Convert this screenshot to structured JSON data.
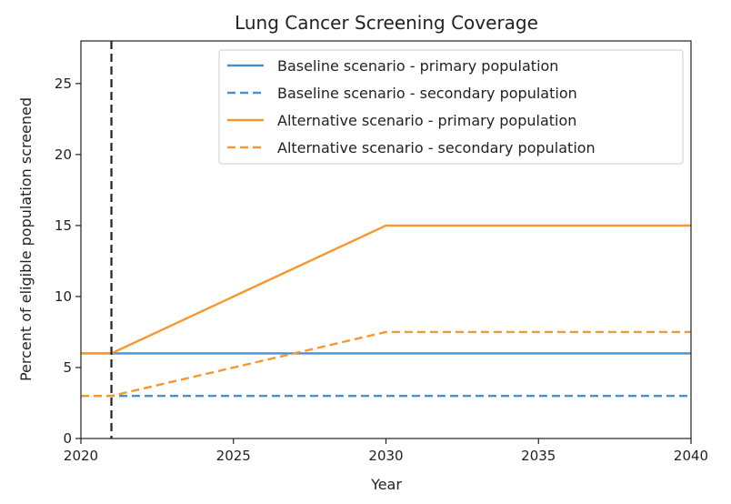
{
  "chart_data": {
    "type": "line",
    "title": "Lung Cancer Screening Coverage",
    "xlabel": "Year",
    "ylabel": "Percent of eligible population screened",
    "xlim": [
      2020,
      2040
    ],
    "ylim": [
      0,
      28
    ],
    "xticks": [
      2020,
      2025,
      2030,
      2035,
      2040
    ],
    "yticks": [
      0,
      5,
      10,
      15,
      20,
      25
    ],
    "grid": false,
    "legend_position": "top-right",
    "reference_line": {
      "x": 2021,
      "style": "dashed",
      "color": "#222222"
    },
    "series": [
      {
        "name": "Baseline scenario - primary population",
        "color": "#4a90d0",
        "style": "solid",
        "x": [
          2020,
          2021,
          2030,
          2040
        ],
        "y": [
          6,
          6,
          6,
          6
        ]
      },
      {
        "name": "Baseline scenario - secondary population",
        "color": "#4a90d0",
        "style": "dashed",
        "x": [
          2020,
          2021,
          2030,
          2040
        ],
        "y": [
          3,
          3,
          3,
          3
        ]
      },
      {
        "name": "Alternative scenario - primary population",
        "color": "#f7982e",
        "style": "solid",
        "x": [
          2020,
          2021,
          2030,
          2040
        ],
        "y": [
          6,
          6,
          15,
          15
        ]
      },
      {
        "name": "Alternative scenario - secondary population",
        "color": "#f7982e",
        "style": "dashed",
        "x": [
          2020,
          2021,
          2030,
          2040
        ],
        "y": [
          3,
          3,
          7.5,
          7.5
        ]
      }
    ]
  }
}
